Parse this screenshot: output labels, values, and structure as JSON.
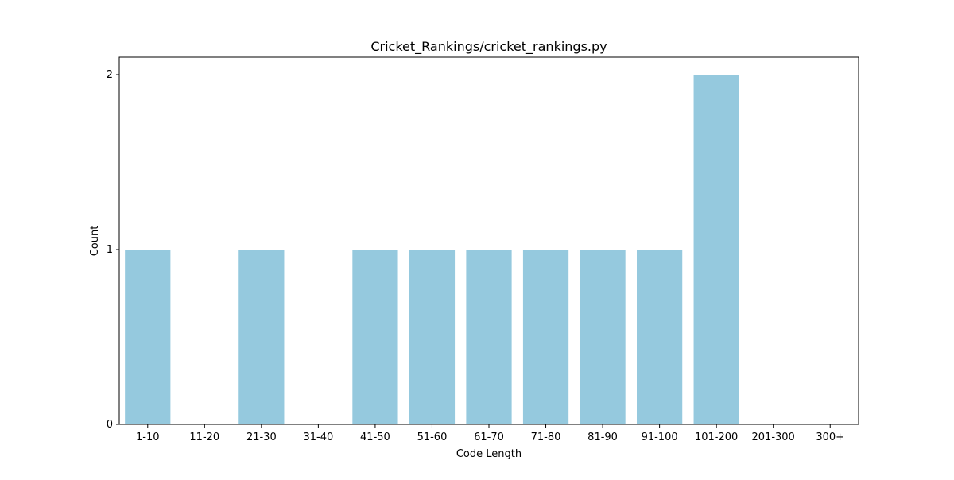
{
  "chart_data": {
    "type": "bar",
    "title": "Cricket_Rankings/cricket_rankings.py",
    "xlabel": "Code Length",
    "ylabel": "Count",
    "categories": [
      "1-10",
      "11-20",
      "21-30",
      "31-40",
      "41-50",
      "51-60",
      "61-70",
      "71-80",
      "81-90",
      "91-100",
      "101-200",
      "201-300",
      "300+"
    ],
    "values": [
      1,
      0,
      1,
      0,
      1,
      1,
      1,
      1,
      1,
      1,
      2,
      0,
      0
    ],
    "ylim": [
      0,
      2.1
    ],
    "yticks": [
      "0",
      "1",
      "2"
    ],
    "bar_color": "#95c9de",
    "grid": false,
    "legend": "none"
  }
}
